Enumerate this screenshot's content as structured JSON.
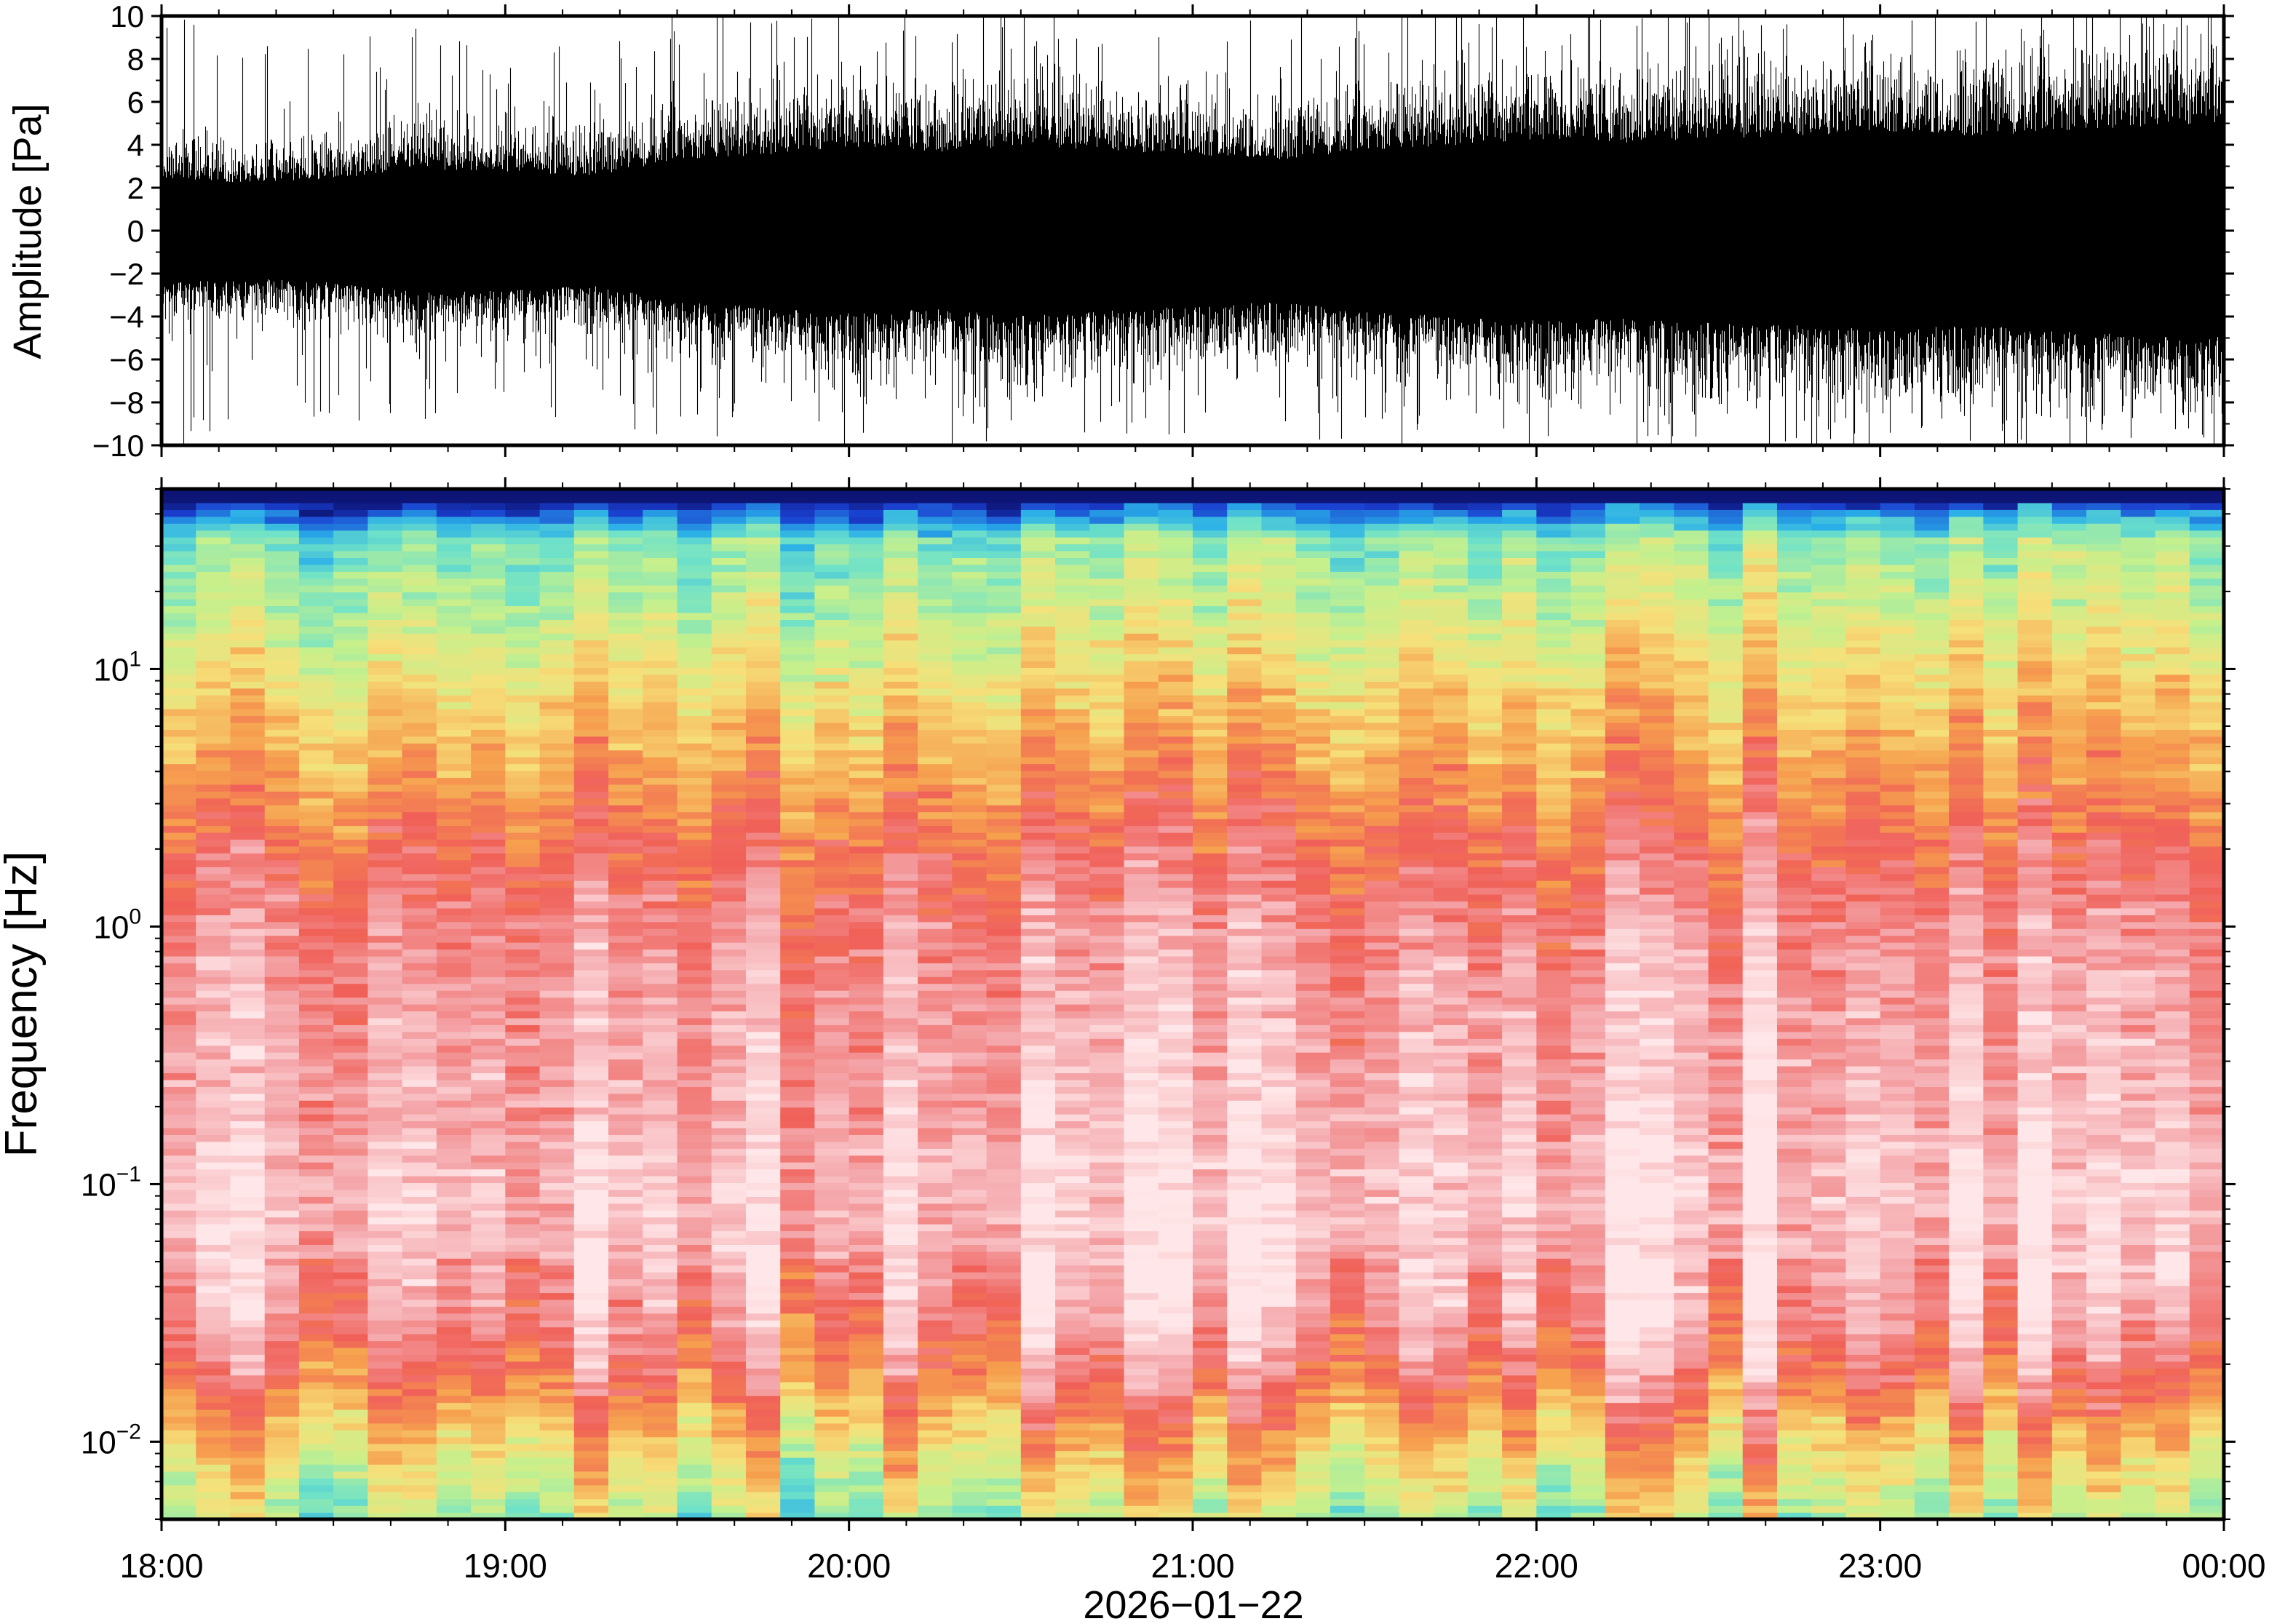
{
  "chart_data": [
    {
      "type": "line",
      "panel": "waveform",
      "ylabel": "Amplitude [Pa]",
      "ylim": [
        -10,
        10
      ],
      "yticks": [
        -10,
        -8,
        -6,
        -4,
        -2,
        0,
        2,
        4,
        6,
        8,
        10
      ],
      "ytick_labels": [
        "−10",
        "−8",
        "−6",
        "−4",
        "−2",
        "0",
        "2",
        "4",
        "6",
        "8",
        "10"
      ],
      "x_range": [
        "2026-01-22T18:00",
        "2026-01-23T00:00"
      ],
      "series": [
        {
          "envelope_x_hours": [
            18.0,
            18.25,
            18.5,
            18.75,
            19.0,
            19.25,
            19.5,
            19.75,
            20.0,
            20.25,
            20.5,
            20.75,
            21.0,
            21.25,
            21.5,
            21.75,
            22.0,
            22.25,
            22.5,
            22.75,
            23.0,
            23.25,
            23.5,
            23.75,
            24.0
          ],
          "core_amplitude_pa": [
            2.2,
            2.0,
            2.2,
            2.6,
            2.5,
            2.3,
            3.0,
            3.2,
            3.5,
            3.3,
            3.6,
            3.4,
            3.2,
            3.0,
            3.4,
            3.6,
            3.8,
            3.7,
            3.9,
            4.0,
            4.2,
            4.0,
            4.2,
            4.4,
            4.5
          ],
          "peak_amplitude_pa": [
            10,
            8,
            8,
            9,
            8,
            8,
            10,
            9,
            10,
            9,
            10,
            9,
            9,
            9,
            10,
            10,
            10,
            10,
            10,
            10,
            10,
            10,
            10,
            10,
            10
          ]
        }
      ],
      "line_color": "#000000"
    },
    {
      "type": "heatmap",
      "panel": "spectrogram",
      "ylabel": "Frequency [Hz]",
      "xlabel": "2026−01−22",
      "yscale": "log",
      "ylim": [
        0.005,
        50
      ],
      "yticks": [
        0.01,
        0.1,
        1,
        10
      ],
      "ytick_labels": [
        {
          "base": "10",
          "exp": "−2"
        },
        {
          "base": "10",
          "exp": "−1"
        },
        {
          "base": "10",
          "exp": "0"
        },
        {
          "base": "10",
          "exp": "1"
        }
      ],
      "x_range": [
        "2026-01-22T18:00",
        "2026-01-23T00:00"
      ],
      "xticks": [
        "18:00",
        "19:00",
        "20:00",
        "21:00",
        "22:00",
        "23:00",
        "00:00"
      ],
      "colormap": "rainbow",
      "column_interval_minutes": 6,
      "level_vs_log10_freq": {
        "log10_freq": [
          -2.3,
          -2.0,
          -1.7,
          -1.5,
          -1.2,
          -1.0,
          -0.7,
          -0.3,
          0.0,
          0.3,
          0.6,
          0.9,
          1.2,
          1.5,
          1.65
        ],
        "relative_level": [
          0.45,
          0.62,
          0.82,
          0.9,
          0.95,
          0.96,
          0.92,
          0.9,
          0.86,
          0.78,
          0.68,
          0.58,
          0.46,
          0.36,
          0.05
        ]
      },
      "colormap_stops": [
        "#0a0a60",
        "#1a3fd0",
        "#29aee8",
        "#6fe2c8",
        "#c6f08c",
        "#f6e07a",
        "#f6a04e",
        "#f06058",
        "#f4a6aa",
        "#ffe6e8"
      ]
    }
  ]
}
